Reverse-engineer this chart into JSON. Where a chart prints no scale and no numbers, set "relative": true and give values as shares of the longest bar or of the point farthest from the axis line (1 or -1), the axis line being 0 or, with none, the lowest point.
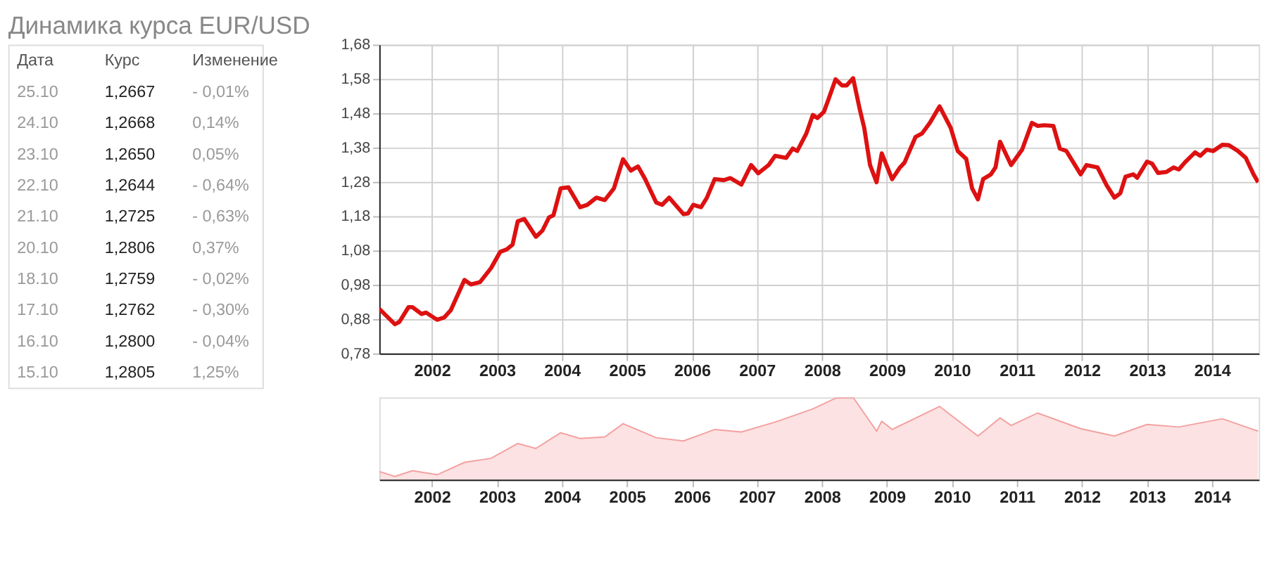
{
  "chart_data": [
    {
      "type": "other",
      "title": "Динамика курса EUR/USD",
      "annotations": [
        "Дата",
        "Курс",
        "Изменение",
        "25.10",
        "1,2667",
        "- 0,01%",
        "24.10",
        "1,2668",
        "0,14%",
        "23.10",
        "1,2650",
        "0,05%",
        "22.10",
        "1,2644",
        "- 0,64%",
        "21.10",
        "1,2725",
        "- 0,63%",
        "20.10",
        "1,2806",
        "0,37%",
        "18.10",
        "1,2759",
        "- 0,02%",
        "17.10",
        "1,2762",
        "- 0,30%",
        "16.10",
        "1,2800",
        "- 0,04%",
        "15.10",
        "1,2805",
        "1,25%"
      ]
    },
    {
      "type": "line",
      "grid": true,
      "xlim": [
        2001.19,
        2014.72
      ],
      "xticks": [
        2002,
        2003,
        2004,
        2005,
        2006,
        2007,
        2008,
        2009,
        2010,
        2011,
        2012,
        2013,
        2014
      ],
      "ylim": [
        0.78,
        1.68
      ],
      "yticks": [
        {
          "value": 0.78,
          "label": "0,78"
        },
        {
          "value": 0.88,
          "label": "0,88"
        },
        {
          "value": 0.98,
          "label": "0,98"
        },
        {
          "value": 1.08,
          "label": "1,08"
        },
        {
          "value": 1.18,
          "label": "1,18"
        },
        {
          "value": 1.28,
          "label": "1,28"
        },
        {
          "value": 1.38,
          "label": "1,38"
        },
        {
          "value": 1.48,
          "label": "1,48"
        },
        {
          "value": 1.58,
          "label": "1,58"
        },
        {
          "value": 1.68,
          "label": "1,68"
        }
      ],
      "series": [
        {
          "color": "#dd1111",
          "x": [
            2001.19,
            2001.43,
            2001.5,
            2001.64,
            2001.7,
            2001.84,
            2001.91,
            2002.08,
            2002.19,
            2002.29,
            2002.5,
            2002.6,
            2002.74,
            2002.91,
            2003.05,
            2003.15,
            2003.24,
            2003.32,
            2003.42,
            2003.6,
            2003.7,
            2003.8,
            2003.87,
            2003.98,
            2004.1,
            2004.28,
            2004.39,
            2004.53,
            2004.66,
            2004.8,
            2004.94,
            2005.06,
            2005.17,
            2005.28,
            2005.45,
            2005.54,
            2005.65,
            2005.87,
            2005.94,
            2006.02,
            2006.14,
            2006.23,
            2006.35,
            2006.49,
            2006.59,
            2006.76,
            2006.91,
            2007.02,
            2007.18,
            2007.28,
            2007.45,
            2007.55,
            2007.62,
            2007.76,
            2007.86,
            2007.93,
            2008.03,
            2008.1,
            2008.21,
            2008.31,
            2008.38,
            2008.48,
            2008.58,
            2008.65,
            2008.74,
            2008.84,
            2008.92,
            2009.08,
            2009.2,
            2009.27,
            2009.44,
            2009.54,
            2009.66,
            2009.81,
            2009.98,
            2010.09,
            2010.22,
            2010.31,
            2010.4,
            2010.48,
            2010.6,
            2010.67,
            2010.74,
            2010.91,
            2011.08,
            2011.23,
            2011.32,
            2011.42,
            2011.56,
            2011.66,
            2011.76,
            2011.87,
            2011.98,
            2012.07,
            2012.24,
            2012.38,
            2012.5,
            2012.59,
            2012.67,
            2012.79,
            2012.85,
            2013.0,
            2013.08,
            2013.17,
            2013.3,
            2013.41,
            2013.49,
            2013.58,
            2013.74,
            2013.82,
            2013.92,
            2014.02,
            2014.16,
            2014.26,
            2014.4,
            2014.52,
            2014.64,
            2014.71
          ],
          "values": [
            0.91,
            0.865,
            0.872,
            0.915,
            0.915,
            0.895,
            0.899,
            0.878,
            0.885,
            0.906,
            0.994,
            0.981,
            0.988,
            1.029,
            1.076,
            1.083,
            1.097,
            1.165,
            1.172,
            1.12,
            1.138,
            1.176,
            1.183,
            1.261,
            1.264,
            1.206,
            1.213,
            1.234,
            1.227,
            1.261,
            1.346,
            1.313,
            1.325,
            1.288,
            1.22,
            1.213,
            1.234,
            1.186,
            1.188,
            1.213,
            1.206,
            1.234,
            1.288,
            1.285,
            1.291,
            1.272,
            1.329,
            1.305,
            1.329,
            1.356,
            1.35,
            1.377,
            1.37,
            1.421,
            1.475,
            1.466,
            1.484,
            1.52,
            1.579,
            1.561,
            1.561,
            1.582,
            1.493,
            1.438,
            1.329,
            1.279,
            1.363,
            1.288,
            1.322,
            1.336,
            1.411,
            1.421,
            1.452,
            1.5,
            1.438,
            1.37,
            1.347,
            1.261,
            1.229,
            1.288,
            1.302,
            1.322,
            1.397,
            1.329,
            1.374,
            1.452,
            1.443,
            1.445,
            1.443,
            1.377,
            1.37,
            1.336,
            1.302,
            1.329,
            1.322,
            1.27,
            1.234,
            1.247,
            1.295,
            1.302,
            1.292,
            1.339,
            1.333,
            1.306,
            1.309,
            1.322,
            1.316,
            1.336,
            1.366,
            1.356,
            1.374,
            1.37,
            1.388,
            1.387,
            1.37,
            1.35,
            1.302,
            1.279
          ]
        }
      ]
    },
    {
      "type": "area",
      "relative": true,
      "tick_labels": "x",
      "xlim": [
        2001.19,
        2014.72
      ],
      "xticks": [
        2002,
        2003,
        2004,
        2005,
        2006,
        2007,
        2008,
        2009,
        2010,
        2011,
        2012,
        2013,
        2014
      ],
      "series": [
        {
          "color": "#f4a0a0",
          "x": [
            2001.19,
            2001.43,
            2001.7,
            2002.08,
            2002.5,
            2002.91,
            2003.32,
            2003.6,
            2003.98,
            2004.28,
            2004.66,
            2004.94,
            2005.45,
            2005.87,
            2006.35,
            2006.76,
            2007.28,
            2007.86,
            2008.21,
            2008.48,
            2008.84,
            2008.92,
            2009.08,
            2009.81,
            2010.4,
            2010.74,
            2010.91,
            2011.32,
            2011.98,
            2012.5,
            2013.0,
            2013.49,
            2014.16,
            2014.71
          ],
          "values": [
            0.1,
            0.04,
            0.11,
            0.06,
            0.21,
            0.26,
            0.44,
            0.38,
            0.57,
            0.5,
            0.52,
            0.68,
            0.51,
            0.47,
            0.61,
            0.58,
            0.7,
            0.86,
            0.99,
            1,
            0.59,
            0.71,
            0.61,
            0.89,
            0.53,
            0.75,
            0.66,
            0.81,
            0.62,
            0.53,
            0.67,
            0.64,
            0.74,
            0.59
          ]
        }
      ]
    }
  ]
}
